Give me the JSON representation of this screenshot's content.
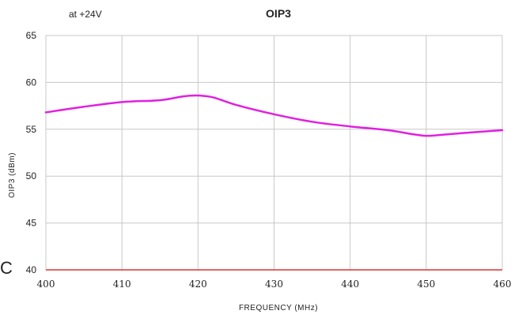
{
  "chart_data": {
    "type": "line",
    "title": "OIP3",
    "subtitle": "at +24V",
    "xlabel": "FREQUENCY (MHz)",
    "ylabel": "OIP3 (dBm)",
    "xlim": [
      400,
      460
    ],
    "ylim": [
      40,
      65
    ],
    "x_ticks": [
      400,
      410,
      420,
      430,
      440,
      450,
      460
    ],
    "y_ticks": [
      40,
      45,
      50,
      55,
      60,
      65
    ],
    "grid": true,
    "series": [
      {
        "color": "#e020e0",
        "x": [
          400,
          405,
          410,
          415,
          418,
          420,
          422,
          425,
          430,
          435,
          440,
          445,
          448,
          450,
          452,
          455,
          460
        ],
        "y": [
          56.8,
          57.4,
          57.9,
          58.1,
          58.5,
          58.6,
          58.4,
          57.6,
          56.6,
          55.8,
          55.3,
          54.9,
          54.5,
          54.3,
          54.4,
          54.6,
          54.9
        ]
      }
    ],
    "baseline": {
      "y": 40,
      "color": "#e03030"
    }
  },
  "stray_mark": "C",
  "colors": {
    "grid": "#c8c8c8",
    "frame": "#c8c8c8",
    "series": "#e020e0",
    "baseline": "#e03030"
  }
}
